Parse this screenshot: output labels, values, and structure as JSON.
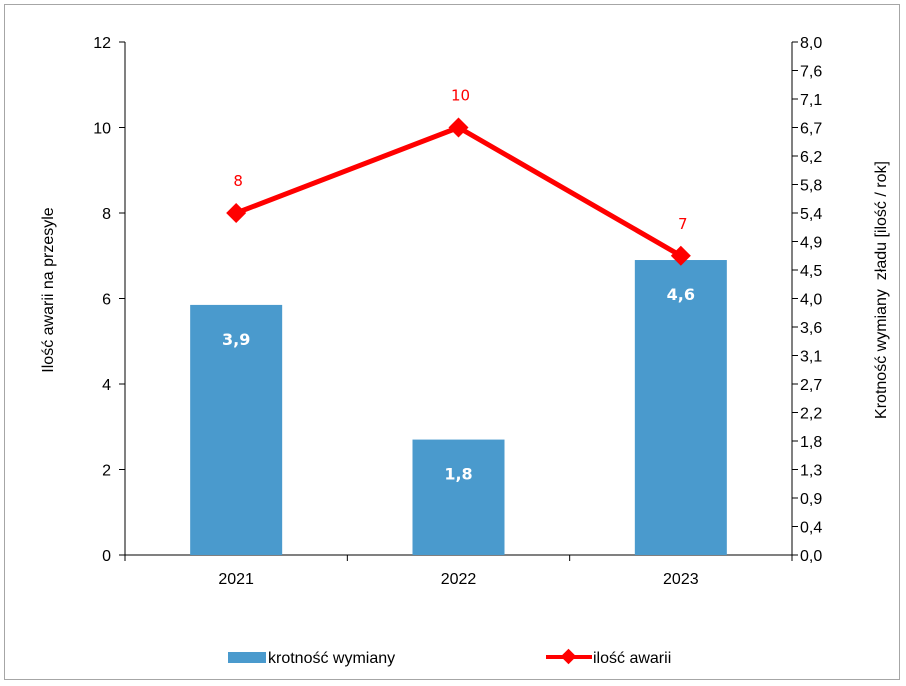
{
  "chart_data": {
    "type": "bar+line",
    "categories": [
      "2021",
      "2022",
      "2023"
    ],
    "series": [
      {
        "name": "krotność wymiany",
        "type": "bar",
        "axis": "right",
        "values": [
          3.9,
          1.8,
          4.6
        ],
        "value_labels": [
          "3,9",
          "1,8",
          "4,6"
        ],
        "color": "#4a9acd"
      },
      {
        "name": "ilość awarii",
        "type": "line",
        "axis": "left",
        "values": [
          8,
          10,
          7
        ],
        "value_labels": [
          "8",
          "10",
          "7"
        ],
        "color": "#ff0000"
      }
    ],
    "ylabel_left": "Ilość awarii na przesyle",
    "ylabel_right": "Krotność wymiany  zładu [ilość / rok]",
    "ylim_left": [
      0,
      12
    ],
    "yticks_left": [
      "0",
      "2",
      "4",
      "6",
      "8",
      "10",
      "12"
    ],
    "ylim_right": [
      0,
      8.0
    ],
    "yticks_right": [
      "0,0",
      "0,4",
      "0,9",
      "1,3",
      "1,8",
      "2,2",
      "2,7",
      "3,1",
      "3,6",
      "4,0",
      "4,5",
      "4,9",
      "5,4",
      "5,8",
      "6,2",
      "6,7",
      "7,1",
      "7,6",
      "8,0"
    ],
    "legend_position": "bottom",
    "grid": false
  }
}
